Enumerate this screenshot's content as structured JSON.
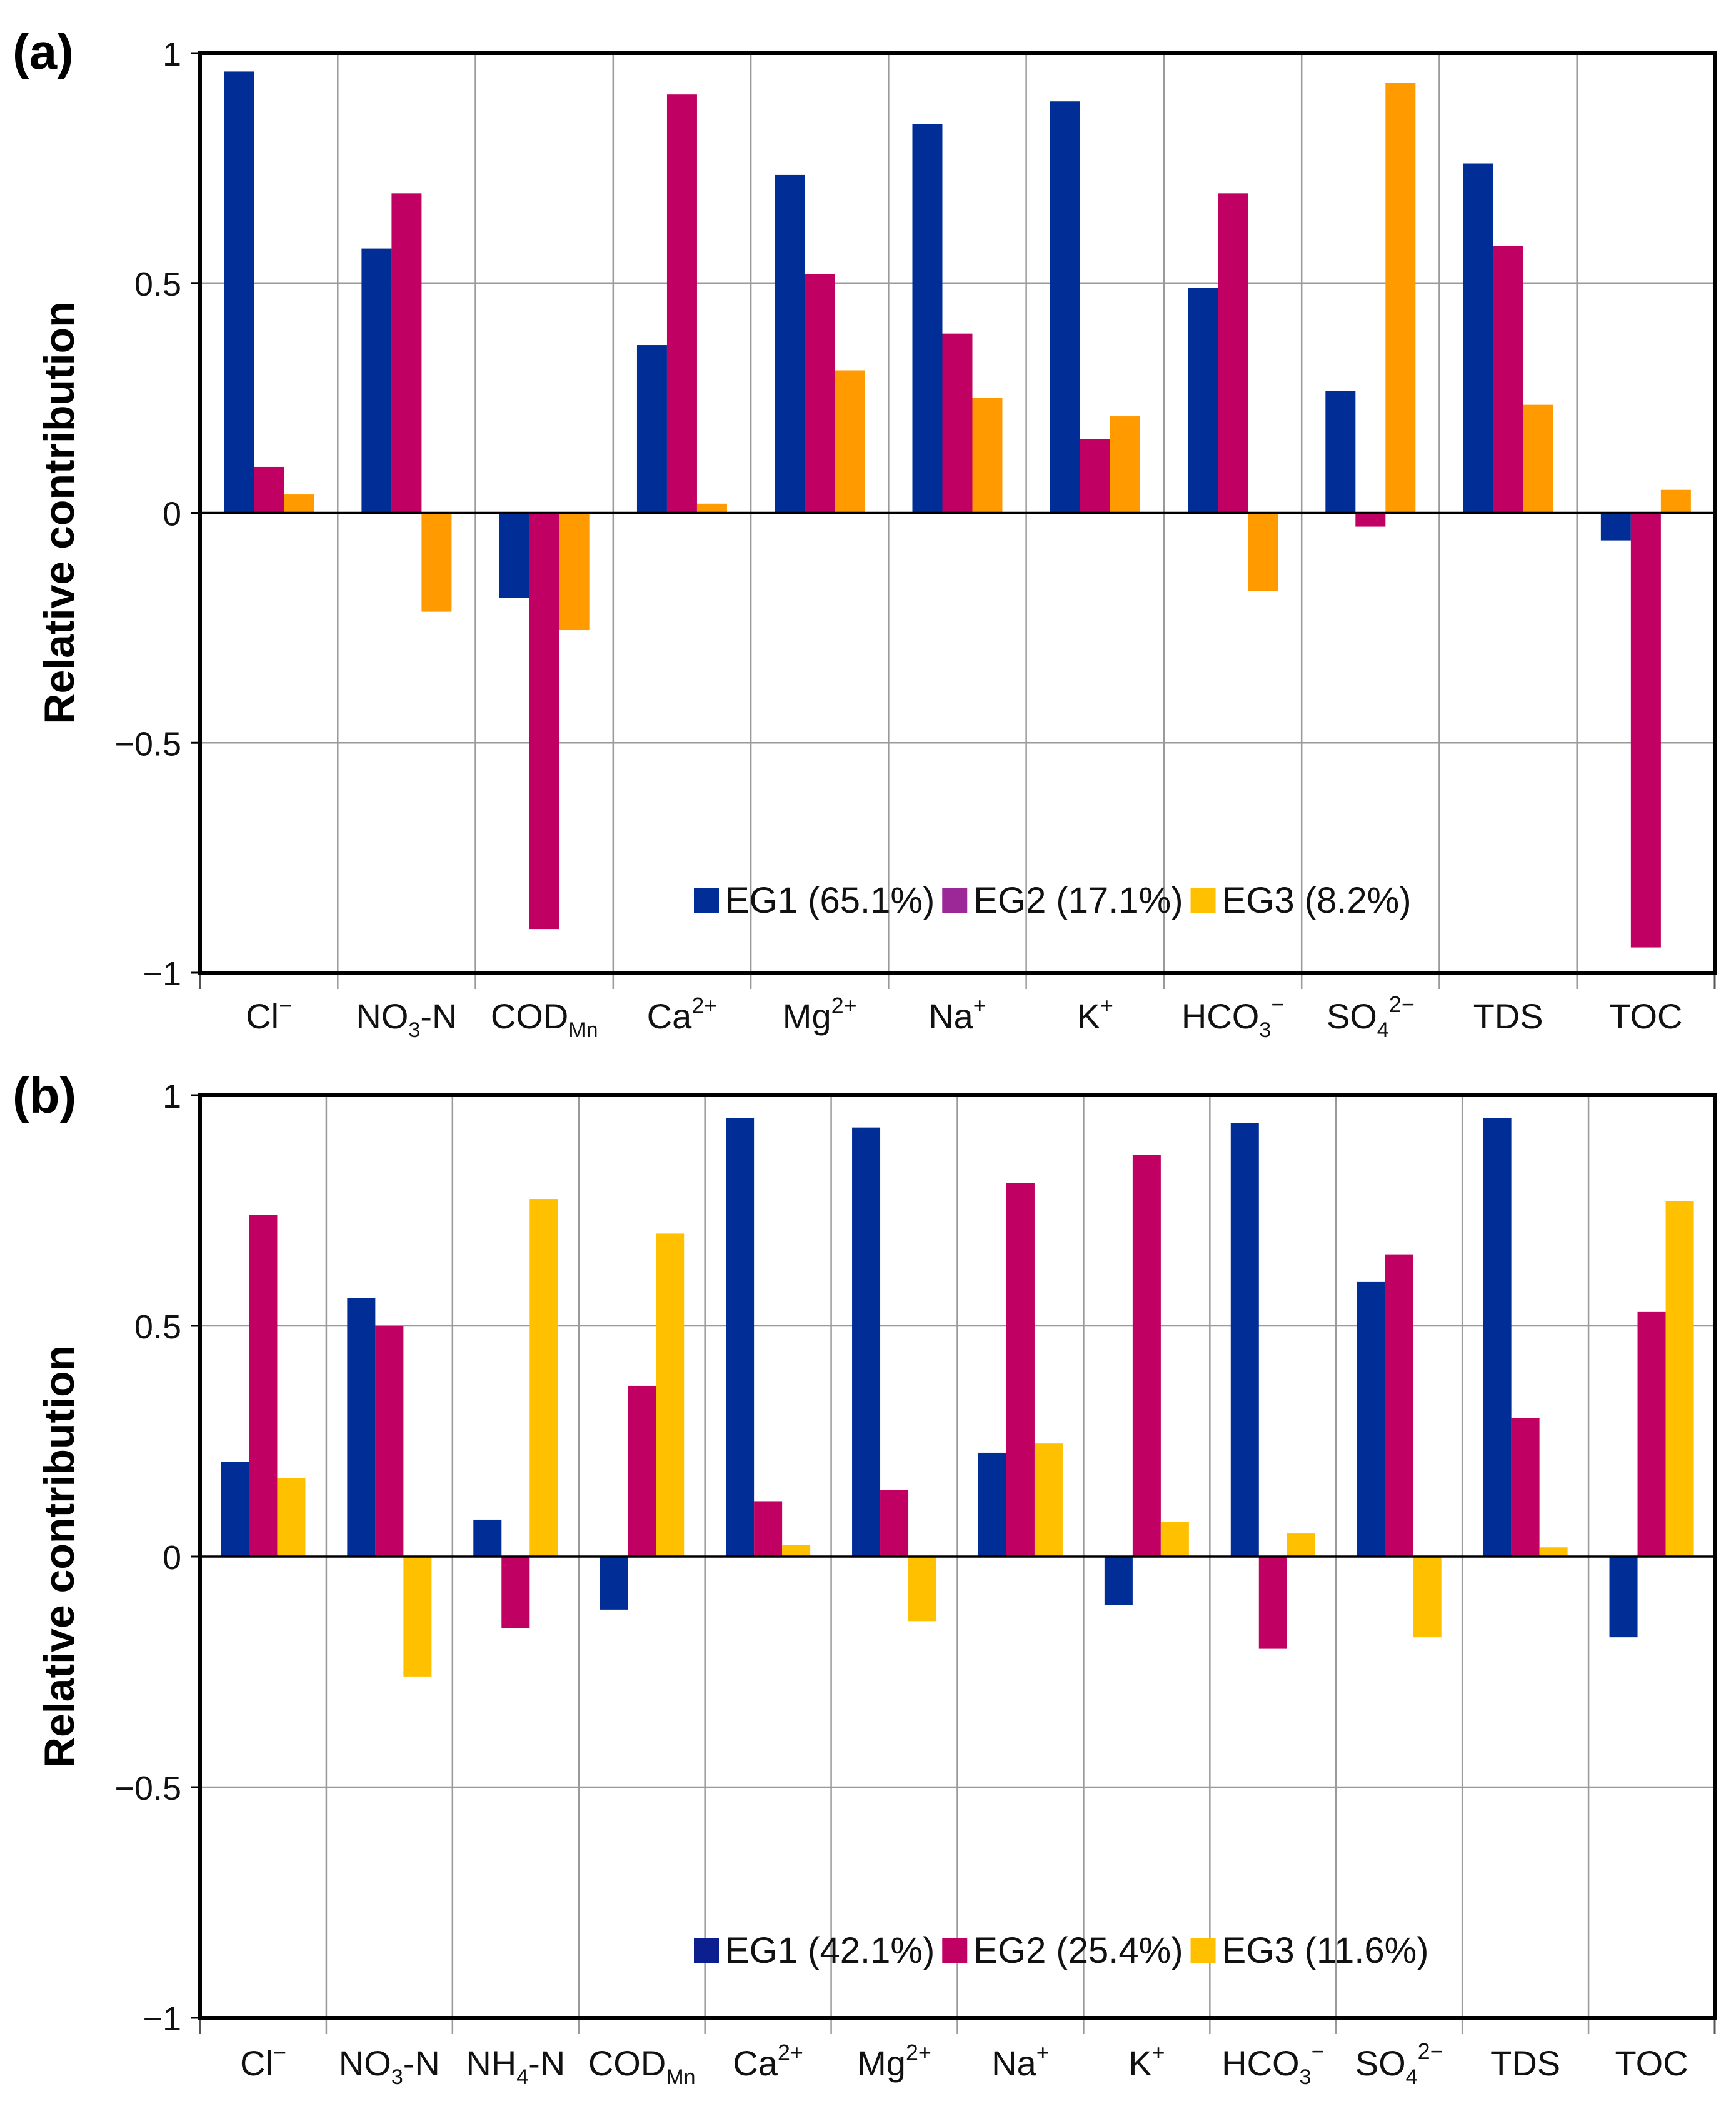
{
  "chart_data": [
    {
      "type": "bar",
      "panel_label": "(a)",
      "ylabel": "Relative contribution",
      "xlabel": "",
      "ylim": [
        -1,
        1
      ],
      "yticks": [
        "1",
        "0.5",
        "0",
        "−0.5",
        "−1"
      ],
      "ytick_values": [
        1,
        0.5,
        0,
        -0.5,
        -1
      ],
      "grid": true,
      "legend_position": "bottom-right",
      "categories": [
        {
          "main": "Cl",
          "sup": "−",
          "sub": "",
          "after": ""
        },
        {
          "main": "NO",
          "sup": "",
          "sub": "3",
          "after": "-N"
        },
        {
          "main": "COD",
          "sup": "",
          "sub": "Mn",
          "after": ""
        },
        {
          "main": "Ca",
          "sup": "2+",
          "sub": "",
          "after": ""
        },
        {
          "main": "Mg",
          "sup": "2+",
          "sub": "",
          "after": ""
        },
        {
          "main": "Na",
          "sup": "+",
          "sub": "",
          "after": ""
        },
        {
          "main": "K",
          "sup": "+",
          "sub": "",
          "after": ""
        },
        {
          "main": "HCO",
          "sup": "−",
          "sub": "3",
          "after": ""
        },
        {
          "main": "SO",
          "sup": "2−",
          "sub": "4",
          "after": ""
        },
        {
          "main": "TDS",
          "sup": "",
          "sub": "",
          "after": ""
        },
        {
          "main": "TOC",
          "sup": "",
          "sub": "",
          "after": ""
        }
      ],
      "series": [
        {
          "name": "EG1 (65.1%)",
          "color": "#002d96",
          "legend_color": "#002d96",
          "values": [
            0.96,
            0.575,
            -0.185,
            0.365,
            0.735,
            0.845,
            0.895,
            0.49,
            0.265,
            0.76,
            -0.06
          ]
        },
        {
          "name": "EG2 (17.1%)",
          "color": "#c00062",
          "legend_color": "#9b2896",
          "values": [
            0.1,
            0.695,
            -0.905,
            0.91,
            0.52,
            0.39,
            0.16,
            0.695,
            -0.03,
            0.58,
            -0.945
          ]
        },
        {
          "name": "EG3 (8.2%)",
          "color": "#ff9a00",
          "legend_color": "#ffc000",
          "values": [
            0.04,
            -0.215,
            -0.255,
            0.02,
            0.31,
            0.25,
            0.21,
            -0.17,
            0.935,
            0.235,
            0.05
          ]
        }
      ]
    },
    {
      "type": "bar",
      "panel_label": "(b)",
      "ylabel": "Relative contribution",
      "xlabel": "",
      "ylim": [
        -1,
        1
      ],
      "yticks": [
        "1",
        "0.5",
        "0",
        "−0.5",
        "−1"
      ],
      "ytick_values": [
        1,
        0.5,
        0,
        -0.5,
        -1
      ],
      "grid": true,
      "legend_position": "bottom-right",
      "categories": [
        {
          "main": "Cl",
          "sup": "−",
          "sub": "",
          "after": ""
        },
        {
          "main": "NO",
          "sup": "",
          "sub": "3",
          "after": "-N"
        },
        {
          "main": "NH",
          "sup": "",
          "sub": "4",
          "after": "-N"
        },
        {
          "main": "COD",
          "sup": "",
          "sub": "Mn",
          "after": ""
        },
        {
          "main": "Ca",
          "sup": "2+",
          "sub": "",
          "after": ""
        },
        {
          "main": "Mg",
          "sup": "2+",
          "sub": "",
          "after": ""
        },
        {
          "main": "Na",
          "sup": "+",
          "sub": "",
          "after": ""
        },
        {
          "main": "K",
          "sup": "+",
          "sub": "",
          "after": ""
        },
        {
          "main": "HCO",
          "sup": "−",
          "sub": "3",
          "after": ""
        },
        {
          "main": "SO",
          "sup": "2−",
          "sub": "4",
          "after": ""
        },
        {
          "main": "TDS",
          "sup": "",
          "sub": "",
          "after": ""
        },
        {
          "main": "TOC",
          "sup": "",
          "sub": "",
          "after": ""
        }
      ],
      "series": [
        {
          "name": "EG1 (42.1%)",
          "color": "#002d96",
          "legend_color": "#0b1f8f",
          "values": [
            0.205,
            0.56,
            0.08,
            -0.115,
            0.95,
            0.93,
            0.225,
            -0.105,
            0.94,
            0.595,
            0.95,
            -0.175
          ]
        },
        {
          "name": "EG2 (25.4%)",
          "color": "#c00062",
          "legend_color": "#c00062",
          "values": [
            0.74,
            0.5,
            -0.155,
            0.37,
            0.12,
            0.145,
            0.81,
            0.87,
            -0.2,
            0.655,
            0.3,
            0.53
          ]
        },
        {
          "name": "EG3 (11.6%)",
          "color": "#ffc000",
          "legend_color": "#ffc000",
          "values": [
            0.17,
            -0.26,
            0.775,
            0.7,
            0.025,
            -0.14,
            0.245,
            0.075,
            0.05,
            -0.175,
            0.02,
            0.77
          ]
        }
      ]
    }
  ]
}
